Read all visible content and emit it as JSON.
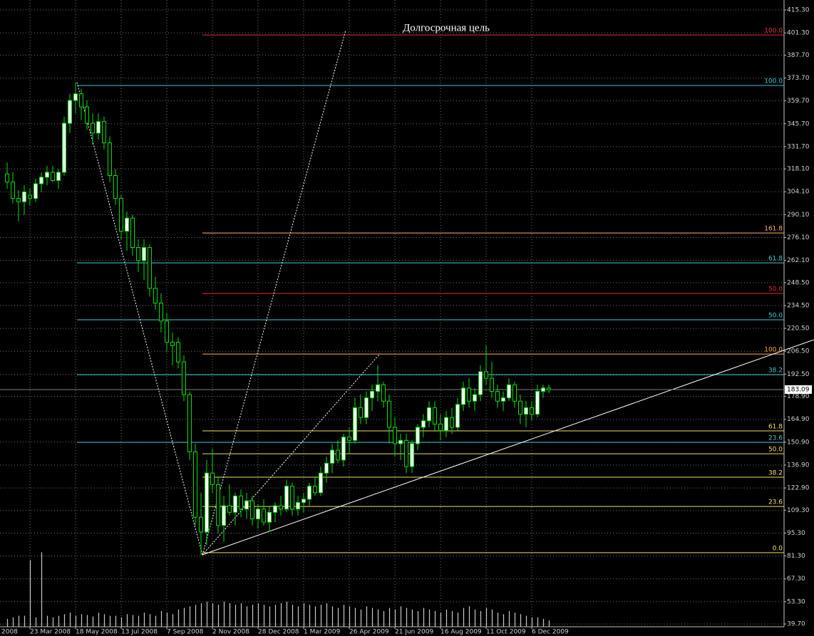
{
  "chart_data": {
    "type": "candlestick",
    "annotation": "Долгосрочная цель",
    "grid": true,
    "bull_color": "#ffffff",
    "bear_color": "#000000",
    "wick_color": "#00e000",
    "volume_color": "#c8c8c8",
    "background": "#000000",
    "xlim": [
      -1.25,
      136.25
    ],
    "ylim": [
      38,
      421.4
    ],
    "volume_lim": [
      0,
      100
    ],
    "xticks": [
      {
        "value": -4,
        "label": "2008"
      },
      {
        "value": 4,
        "label": "23 Mar 2008"
      },
      {
        "value": 12,
        "label": "18 May 2008"
      },
      {
        "value": 20,
        "label": "13 Jul 2008"
      },
      {
        "value": 28,
        "label": "7 Sep 2008"
      },
      {
        "value": 36,
        "label": "2 Nov 2008"
      },
      {
        "value": 44,
        "label": "28 Dec 2008"
      },
      {
        "value": 52,
        "label": "1 Mar 2009"
      },
      {
        "value": 60,
        "label": "26 Apr 2009"
      },
      {
        "value": 68,
        "label": "21 Jun 2009"
      },
      {
        "value": 76,
        "label": "16 Aug 2009"
      },
      {
        "value": 84,
        "label": "11 Oct 2009"
      },
      {
        "value": 92,
        "label": "6 Dec 2009"
      }
    ],
    "yticks": [
      {
        "value": 415.3,
        "label": "415.30"
      },
      {
        "value": 401.3,
        "label": "401.30"
      },
      {
        "value": 387.7,
        "label": "387.70"
      },
      {
        "value": 373.7,
        "label": "373.70"
      },
      {
        "value": 359.7,
        "label": "359.70"
      },
      {
        "value": 345.7,
        "label": "345.70"
      },
      {
        "value": 331.7,
        "label": "331.70"
      },
      {
        "value": 318.1,
        "label": "318.10"
      },
      {
        "value": 304.1,
        "label": "304.10"
      },
      {
        "value": 290.1,
        "label": "290.10"
      },
      {
        "value": 276.1,
        "label": "276.10"
      },
      {
        "value": 262.1,
        "label": "262.10"
      },
      {
        "value": 248.5,
        "label": "248.50"
      },
      {
        "value": 234.5,
        "label": "234.50"
      },
      {
        "value": 220.5,
        "label": "220.50"
      },
      {
        "value": 206.5,
        "label": "206.50"
      },
      {
        "value": 192.5,
        "label": "192.50"
      },
      {
        "value": 178.9,
        "label": "178.90"
      },
      {
        "value": 164.9,
        "label": "164.90"
      },
      {
        "value": 150.9,
        "label": "150.90"
      },
      {
        "value": 136.9,
        "label": "136.90"
      },
      {
        "value": 122.9,
        "label": "122.90"
      },
      {
        "value": 109.3,
        "label": "109.30"
      },
      {
        "value": 95.3,
        "label": "95.30"
      },
      {
        "value": 81.3,
        "label": "81.30"
      },
      {
        "value": 67.3,
        "label": "67.30"
      },
      {
        "value": 53.3,
        "label": "53.30"
      },
      {
        "value": 39.7,
        "label": "39.70"
      }
    ],
    "ohlc": [
      [
        315,
        322,
        306,
        310
      ],
      [
        310,
        316,
        297,
        300
      ],
      [
        300,
        305,
        286,
        298
      ],
      [
        298,
        308,
        290,
        304
      ],
      [
        302,
        306,
        296,
        300
      ],
      [
        300,
        312,
        298,
        309
      ],
      [
        309,
        316,
        304,
        313
      ],
      [
        313,
        320,
        308,
        316
      ],
      [
        316,
        320,
        310,
        311
      ],
      [
        311,
        318,
        306,
        316
      ],
      [
        316,
        350,
        314,
        346
      ],
      [
        346,
        364,
        340,
        360
      ],
      [
        360,
        371,
        352,
        364
      ],
      [
        364,
        367,
        348,
        356
      ],
      [
        356,
        360,
        342,
        346
      ],
      [
        346,
        352,
        333,
        340
      ],
      [
        340,
        352,
        336,
        347
      ],
      [
        347,
        350,
        330,
        334
      ],
      [
        334,
        338,
        310,
        314
      ],
      [
        314,
        318,
        296,
        300
      ],
      [
        300,
        302,
        275,
        280
      ],
      [
        280,
        292,
        268,
        288
      ],
      [
        288,
        290,
        265,
        270
      ],
      [
        270,
        275,
        255,
        262
      ],
      [
        262,
        275,
        250,
        270
      ],
      [
        270,
        272,
        240,
        245
      ],
      [
        245,
        252,
        232,
        236
      ],
      [
        236,
        242,
        218,
        225
      ],
      [
        225,
        230,
        206,
        212
      ],
      [
        212,
        218,
        198,
        210
      ],
      [
        212,
        215,
        196,
        200
      ],
      [
        200,
        204,
        176,
        180
      ],
      [
        180,
        182,
        140,
        145
      ],
      [
        145,
        150,
        100,
        105
      ],
      [
        105,
        120,
        82,
        96
      ],
      [
        96,
        140,
        88,
        132
      ],
      [
        132,
        147,
        120,
        125
      ],
      [
        125,
        130,
        95,
        100
      ],
      [
        100,
        118,
        90,
        112
      ],
      [
        112,
        125,
        106,
        108
      ],
      [
        108,
        120,
        100,
        118
      ],
      [
        118,
        122,
        105,
        110
      ],
      [
        110,
        120,
        104,
        115
      ],
      [
        115,
        118,
        100,
        104
      ],
      [
        104,
        113,
        98,
        110
      ],
      [
        110,
        116,
        100,
        102
      ],
      [
        102,
        112,
        96,
        108
      ],
      [
        108,
        114,
        102,
        112
      ],
      [
        112,
        118,
        106,
        110
      ],
      [
        110,
        128,
        108,
        124
      ],
      [
        124,
        126,
        106,
        110
      ],
      [
        110,
        118,
        106,
        114
      ],
      [
        114,
        120,
        108,
        116
      ],
      [
        116,
        126,
        112,
        124
      ],
      [
        124,
        130,
        118,
        120
      ],
      [
        120,
        136,
        118,
        132
      ],
      [
        132,
        142,
        126,
        138
      ],
      [
        138,
        150,
        132,
        146
      ],
      [
        146,
        152,
        138,
        140
      ],
      [
        140,
        156,
        136,
        154
      ],
      [
        154,
        160,
        144,
        152
      ],
      [
        152,
        178,
        150,
        172
      ],
      [
        172,
        180,
        162,
        166
      ],
      [
        166,
        182,
        162,
        178
      ],
      [
        178,
        186,
        170,
        182
      ],
      [
        182,
        198,
        176,
        186
      ],
      [
        186,
        188,
        172,
        176
      ],
      [
        176,
        180,
        150,
        160
      ],
      [
        160,
        166,
        142,
        150
      ],
      [
        150,
        156,
        140,
        152
      ],
      [
        152,
        156,
        132,
        136
      ],
      [
        136,
        152,
        132,
        150
      ],
      [
        150,
        162,
        146,
        160
      ],
      [
        160,
        168,
        154,
        164
      ],
      [
        164,
        176,
        160,
        172
      ],
      [
        172,
        176,
        158,
        162
      ],
      [
        162,
        168,
        152,
        158
      ],
      [
        158,
        170,
        154,
        166
      ],
      [
        166,
        172,
        156,
        160
      ],
      [
        160,
        178,
        158,
        174
      ],
      [
        174,
        188,
        170,
        184
      ],
      [
        184,
        190,
        172,
        176
      ],
      [
        176,
        184,
        170,
        180
      ],
      [
        180,
        198,
        176,
        194
      ],
      [
        194,
        210,
        186,
        190
      ],
      [
        190,
        200,
        178,
        182
      ],
      [
        182,
        186,
        172,
        176
      ],
      [
        176,
        182,
        170,
        178
      ],
      [
        178,
        190,
        176,
        186
      ],
      [
        186,
        188,
        172,
        176
      ],
      [
        176,
        180,
        162,
        168
      ],
      [
        168,
        176,
        160,
        172
      ],
      [
        172,
        176,
        164,
        168
      ],
      [
        168,
        186,
        166,
        182
      ],
      [
        182,
        186,
        178,
        184
      ],
      [
        184,
        186,
        181,
        183.09
      ]
    ],
    "volumes": [
      10,
      12,
      14,
      14,
      85,
      12,
      95,
      14,
      12,
      14,
      16,
      18,
      14,
      16,
      15,
      13,
      18,
      16,
      14,
      14,
      12,
      16,
      15,
      14,
      18,
      16,
      14,
      20,
      18,
      16,
      22,
      24,
      26,
      28,
      30,
      32,
      30,
      28,
      32,
      30,
      28,
      30,
      26,
      28,
      30,
      28,
      26,
      28,
      30,
      32,
      28,
      26,
      30,
      28,
      26,
      28,
      30,
      26,
      24,
      28,
      26,
      24,
      22,
      26,
      24,
      22,
      20,
      24,
      22,
      26,
      24,
      22,
      20,
      24,
      22,
      20,
      18,
      22,
      20,
      18,
      24,
      26,
      22,
      20,
      24,
      22,
      18,
      16,
      20,
      18,
      16,
      14,
      12,
      12,
      10,
      8
    ],
    "current_price": 183.09,
    "current_price_label": "183.09",
    "fib_levels": [
      {
        "label": "100.0",
        "value": 400.0,
        "color": "#e0303a",
        "x_start": 34.25
      },
      {
        "label": "100.0",
        "value": 369.1,
        "color": "#40c8d8",
        "x_start": 12.25
      },
      {
        "label": "161.8",
        "value": 278.9,
        "color": "#ffb070",
        "x_start": 34.25
      },
      {
        "label": "61.8",
        "value": 260.6,
        "color": "#40c8d8",
        "x_start": 12.25
      },
      {
        "label": "50.0",
        "value": 241.9,
        "color": "#e0303a",
        "x_start": 34.25
      },
      {
        "label": "50.0",
        "value": 225.8,
        "color": "#40c8d8",
        "x_start": 12.25
      },
      {
        "label": "100.0",
        "value": 204.8,
        "color": "#ffb040",
        "x_start": 34.25
      },
      {
        "label": "38.2",
        "value": 192.2,
        "color": "#40c8d8",
        "x_start": 12.25
      },
      {
        "label": "61.8",
        "value": 157.8,
        "color": "#f0e060",
        "x_start": 34.25
      },
      {
        "label": "23.6",
        "value": 150.8,
        "color": "#40c8d8",
        "x_start": 12.25
      },
      {
        "label": "50.0",
        "value": 143.8,
        "color": "#f0e060",
        "x_start": 34.25
      },
      {
        "label": "38.2",
        "value": 129.5,
        "color": "#f0e060",
        "x_start": 34.25
      },
      {
        "label": "23.6",
        "value": 111.6,
        "color": "#f0e060",
        "x_start": 34.25
      },
      {
        "label": "0.0",
        "value": 83.3,
        "color": "#f0e060",
        "x_start": 34.25
      }
    ],
    "drawings": [
      {
        "x": [
          34.25,
          141.5
        ],
        "y": [
          82,
          213.6
        ],
        "dashed": false
      },
      {
        "x": [
          12.25,
          34.25
        ],
        "y": [
          371,
          82
        ],
        "dashed": true
      },
      {
        "x": [
          34.25,
          59.375
        ],
        "y": [
          82,
          403
        ],
        "dashed": true
      },
      {
        "x": [
          34.25,
          65.375
        ],
        "y": [
          82,
          205
        ],
        "dashed": true
      }
    ]
  }
}
